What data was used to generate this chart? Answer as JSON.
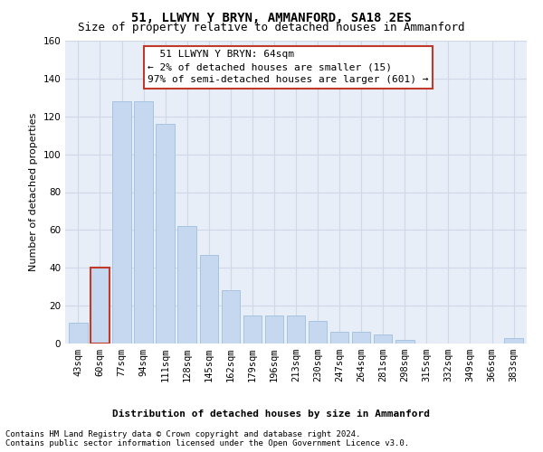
{
  "title": "51, LLWYN Y BRYN, AMMANFORD, SA18 2ES",
  "subtitle": "Size of property relative to detached houses in Ammanford",
  "xlabel": "Distribution of detached houses by size in Ammanford",
  "ylabel": "Number of detached properties",
  "categories": [
    "43sqm",
    "60sqm",
    "77sqm",
    "94sqm",
    "111sqm",
    "128sqm",
    "145sqm",
    "162sqm",
    "179sqm",
    "196sqm",
    "213sqm",
    "230sqm",
    "247sqm",
    "264sqm",
    "281sqm",
    "298sqm",
    "315sqm",
    "332sqm",
    "349sqm",
    "366sqm",
    "383sqm"
  ],
  "values": [
    11,
    40,
    128,
    128,
    116,
    62,
    47,
    28,
    15,
    15,
    15,
    12,
    6,
    6,
    5,
    2,
    0,
    0,
    0,
    0,
    3
  ],
  "bar_color": "#c5d8f0",
  "bar_edge_color": "#a8c4e0",
  "highlight_index": 1,
  "highlight_edge_color": "#c0392b",
  "ylim": [
    0,
    160
  ],
  "yticks": [
    0,
    20,
    40,
    60,
    80,
    100,
    120,
    140,
    160
  ],
  "annotation_text": "  51 LLWYN Y BRYN: 64sqm\n← 2% of detached houses are smaller (15)\n97% of semi-detached houses are larger (601) →",
  "annotation_box_color": "white",
  "annotation_box_edge_color": "#c0392b",
  "footer_line1": "Contains HM Land Registry data © Crown copyright and database right 2024.",
  "footer_line2": "Contains public sector information licensed under the Open Government Licence v3.0.",
  "grid_color": "#d0d8e8",
  "background_color": "#e8eef8",
  "title_fontsize": 10,
  "subtitle_fontsize": 9,
  "axis_label_fontsize": 8,
  "tick_fontsize": 7.5,
  "annotation_fontsize": 8,
  "footer_fontsize": 6.5
}
